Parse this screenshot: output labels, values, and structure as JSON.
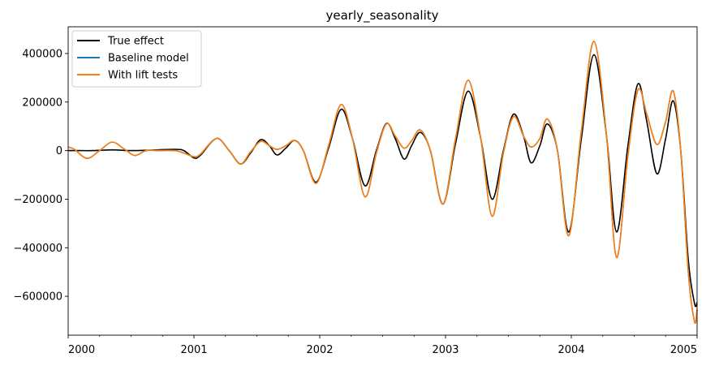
{
  "chart_data": {
    "type": "line",
    "title": "yearly_seasonality",
    "xlabel": "",
    "ylabel": "",
    "xlim": [
      2000,
      2005
    ],
    "ylim": [
      -760000,
      510000
    ],
    "x_ticks": [
      {
        "value": 2000,
        "label": "2000"
      },
      {
        "value": 2001,
        "label": "2001"
      },
      {
        "value": 2002,
        "label": "2002"
      },
      {
        "value": 2003,
        "label": "2003"
      },
      {
        "value": 2004,
        "label": "2004"
      },
      {
        "value": 2005,
        "label": "2005"
      }
    ],
    "y_ticks": [
      {
        "value": 400000,
        "label": "400000"
      },
      {
        "value": 200000,
        "label": "200000"
      },
      {
        "value": 0,
        "label": "0"
      },
      {
        "value": -200000,
        "label": "−200000"
      },
      {
        "value": -400000,
        "label": "−400000"
      },
      {
        "value": -600000,
        "label": "−600000"
      }
    ],
    "grid": false,
    "legend_position": "top-left",
    "series": [
      {
        "name": "True effect",
        "color": "#000000",
        "points": [
          [
            2000.0,
            0
          ],
          [
            2000.1,
            0
          ],
          [
            2000.2,
            0
          ],
          [
            2000.35,
            3000
          ],
          [
            2000.5,
            0
          ],
          [
            2000.65,
            2000
          ],
          [
            2000.85,
            5000
          ],
          [
            2000.92,
            0
          ],
          [
            2001.0,
            -30000
          ],
          [
            2001.05,
            -20000
          ],
          [
            2001.18,
            50000
          ],
          [
            2001.28,
            0
          ],
          [
            2001.37,
            -55000
          ],
          [
            2001.45,
            -10000
          ],
          [
            2001.53,
            45000
          ],
          [
            2001.6,
            20000
          ],
          [
            2001.66,
            -18000
          ],
          [
            2001.73,
            10000
          ],
          [
            2001.8,
            42000
          ],
          [
            2001.87,
            0
          ],
          [
            2001.97,
            -130000
          ],
          [
            2002.07,
            10000
          ],
          [
            2002.17,
            170000
          ],
          [
            2002.26,
            50000
          ],
          [
            2002.36,
            -145000
          ],
          [
            2002.45,
            0
          ],
          [
            2002.53,
            112000
          ],
          [
            2002.6,
            50000
          ],
          [
            2002.67,
            -35000
          ],
          [
            2002.73,
            20000
          ],
          [
            2002.8,
            75000
          ],
          [
            2002.88,
            0
          ],
          [
            2002.98,
            -220000
          ],
          [
            2003.08,
            30000
          ],
          [
            2003.18,
            245000
          ],
          [
            2003.28,
            50000
          ],
          [
            2003.37,
            -200000
          ],
          [
            2003.46,
            0
          ],
          [
            2003.54,
            150000
          ],
          [
            2003.62,
            60000
          ],
          [
            2003.68,
            -50000
          ],
          [
            2003.75,
            20000
          ],
          [
            2003.81,
            110000
          ],
          [
            2003.89,
            0
          ],
          [
            2003.98,
            -335000
          ],
          [
            2004.08,
            50000
          ],
          [
            2004.18,
            395000
          ],
          [
            2004.28,
            60000
          ],
          [
            2004.36,
            -335000
          ],
          [
            2004.45,
            20000
          ],
          [
            2004.53,
            275000
          ],
          [
            2004.6,
            120000
          ],
          [
            2004.68,
            -95000
          ],
          [
            2004.75,
            50000
          ],
          [
            2004.81,
            205000
          ],
          [
            2004.87,
            0
          ],
          [
            2004.93,
            -450000
          ],
          [
            2004.98,
            -630000
          ],
          [
            2005.0,
            -625000
          ]
        ]
      },
      {
        "name": "Baseline model",
        "color": "#1f77b4",
        "points": [
          [
            2000.0,
            15000
          ],
          [
            2000.05,
            5000
          ],
          [
            2000.15,
            -32000
          ],
          [
            2000.25,
            0
          ],
          [
            2000.35,
            35000
          ],
          [
            2000.45,
            5000
          ],
          [
            2000.53,
            -20000
          ],
          [
            2000.62,
            0
          ],
          [
            2000.72,
            0
          ],
          [
            2000.85,
            0
          ],
          [
            2000.92,
            -10000
          ],
          [
            2001.0,
            -25000
          ],
          [
            2001.05,
            -15000
          ],
          [
            2001.18,
            50000
          ],
          [
            2001.28,
            0
          ],
          [
            2001.37,
            -55000
          ],
          [
            2001.45,
            -5000
          ],
          [
            2001.53,
            38000
          ],
          [
            2001.6,
            20000
          ],
          [
            2001.66,
            5000
          ],
          [
            2001.73,
            20000
          ],
          [
            2001.8,
            42000
          ],
          [
            2001.87,
            0
          ],
          [
            2001.97,
            -135000
          ],
          [
            2002.07,
            20000
          ],
          [
            2002.17,
            190000
          ],
          [
            2002.26,
            50000
          ],
          [
            2002.36,
            -190000
          ],
          [
            2002.45,
            -10000
          ],
          [
            2002.53,
            110000
          ],
          [
            2002.6,
            60000
          ],
          [
            2002.67,
            10000
          ],
          [
            2002.73,
            40000
          ],
          [
            2002.8,
            85000
          ],
          [
            2002.88,
            0
          ],
          [
            2002.98,
            -220000
          ],
          [
            2003.08,
            50000
          ],
          [
            2003.18,
            290000
          ],
          [
            2003.28,
            50000
          ],
          [
            2003.37,
            -270000
          ],
          [
            2003.46,
            -10000
          ],
          [
            2003.54,
            140000
          ],
          [
            2003.62,
            60000
          ],
          [
            2003.68,
            15000
          ],
          [
            2003.75,
            50000
          ],
          [
            2003.81,
            130000
          ],
          [
            2003.89,
            0
          ],
          [
            2003.98,
            -350000
          ],
          [
            2004.08,
            80000
          ],
          [
            2004.18,
            450000
          ],
          [
            2004.28,
            60000
          ],
          [
            2004.36,
            -440000
          ],
          [
            2004.45,
            -20000
          ],
          [
            2004.53,
            250000
          ],
          [
            2004.6,
            150000
          ],
          [
            2004.68,
            25000
          ],
          [
            2004.75,
            120000
          ],
          [
            2004.81,
            245000
          ],
          [
            2004.87,
            0
          ],
          [
            2004.93,
            -500000
          ],
          [
            2004.98,
            -705000
          ],
          [
            2005.0,
            -655000
          ]
        ]
      },
      {
        "name": "With lift tests",
        "color": "#ff7f0e",
        "points": [
          [
            2000.0,
            15000
          ],
          [
            2000.05,
            5000
          ],
          [
            2000.15,
            -32000
          ],
          [
            2000.25,
            0
          ],
          [
            2000.35,
            35000
          ],
          [
            2000.45,
            5000
          ],
          [
            2000.53,
            -20000
          ],
          [
            2000.62,
            0
          ],
          [
            2000.72,
            0
          ],
          [
            2000.85,
            0
          ],
          [
            2000.92,
            -10000
          ],
          [
            2001.0,
            -25000
          ],
          [
            2001.05,
            -15000
          ],
          [
            2001.18,
            50000
          ],
          [
            2001.28,
            0
          ],
          [
            2001.37,
            -55000
          ],
          [
            2001.45,
            -5000
          ],
          [
            2001.53,
            38000
          ],
          [
            2001.6,
            20000
          ],
          [
            2001.66,
            5000
          ],
          [
            2001.73,
            20000
          ],
          [
            2001.8,
            42000
          ],
          [
            2001.87,
            0
          ],
          [
            2001.97,
            -135000
          ],
          [
            2002.07,
            20000
          ],
          [
            2002.17,
            190000
          ],
          [
            2002.26,
            50000
          ],
          [
            2002.36,
            -190000
          ],
          [
            2002.45,
            -10000
          ],
          [
            2002.53,
            110000
          ],
          [
            2002.6,
            60000
          ],
          [
            2002.67,
            10000
          ],
          [
            2002.73,
            40000
          ],
          [
            2002.8,
            85000
          ],
          [
            2002.88,
            0
          ],
          [
            2002.98,
            -220000
          ],
          [
            2003.08,
            50000
          ],
          [
            2003.18,
            290000
          ],
          [
            2003.28,
            50000
          ],
          [
            2003.37,
            -270000
          ],
          [
            2003.46,
            -10000
          ],
          [
            2003.54,
            140000
          ],
          [
            2003.62,
            60000
          ],
          [
            2003.68,
            15000
          ],
          [
            2003.75,
            50000
          ],
          [
            2003.81,
            130000
          ],
          [
            2003.89,
            0
          ],
          [
            2003.98,
            -350000
          ],
          [
            2004.08,
            80000
          ],
          [
            2004.18,
            450000
          ],
          [
            2004.28,
            60000
          ],
          [
            2004.36,
            -440000
          ],
          [
            2004.45,
            -20000
          ],
          [
            2004.53,
            250000
          ],
          [
            2004.6,
            150000
          ],
          [
            2004.68,
            25000
          ],
          [
            2004.75,
            120000
          ],
          [
            2004.81,
            245000
          ],
          [
            2004.87,
            0
          ],
          [
            2004.93,
            -500000
          ],
          [
            2004.98,
            -705000
          ],
          [
            2005.0,
            -655000
          ]
        ]
      }
    ]
  }
}
